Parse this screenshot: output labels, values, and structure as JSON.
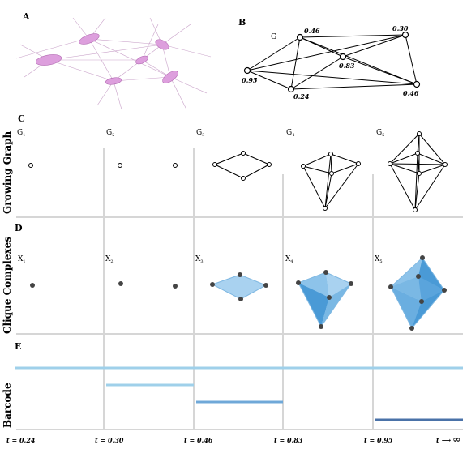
{
  "panels": {
    "a": "A",
    "b": "B",
    "c": "C",
    "d": "D",
    "e": "E"
  },
  "graph_b": {
    "label": "G",
    "weights": [
      "0.46",
      "0.30",
      "0.83",
      "0.95",
      "0.24",
      "0.46"
    ]
  },
  "row_titles": {
    "growing": "Growing Graph",
    "clique": "Clique Complexes",
    "barcode": "Barcode"
  },
  "graphs": [
    {
      "letter": "G",
      "sub": "1"
    },
    {
      "letter": "G",
      "sub": "2"
    },
    {
      "letter": "G",
      "sub": "3"
    },
    {
      "letter": "G",
      "sub": "4"
    },
    {
      "letter": "G",
      "sub": "5"
    }
  ],
  "complexes": [
    {
      "letter": "X",
      "sub": "1"
    },
    {
      "letter": "X",
      "sub": "2"
    },
    {
      "letter": "X",
      "sub": "3"
    },
    {
      "letter": "X",
      "sub": "4"
    },
    {
      "letter": "X",
      "sub": "5"
    }
  ],
  "time_labels": [
    "t = 0.24",
    "t = 0.30",
    "t = 0.46",
    "t = 0.83",
    "t = 0.95"
  ],
  "time_end": "t",
  "time_arrow": "⟶",
  "time_infinity": "∞",
  "barcode": [
    {
      "start": 0.24,
      "end": "inf",
      "color": "#9fd0ea"
    },
    {
      "start": 0.3,
      "end": 0.46,
      "color": "#9fd0ea"
    },
    {
      "start": 0.46,
      "end": 0.83,
      "color": "#6fa8d8"
    },
    {
      "start": 0.95,
      "end": "inf",
      "color": "#4a72a8"
    }
  ],
  "colors": {
    "neuron": "#d88fd8",
    "simplex": "#8fc3ea",
    "simplex_dark": "#4a9ad6",
    "separator": "#d9d9d9",
    "node": "#444444"
  }
}
